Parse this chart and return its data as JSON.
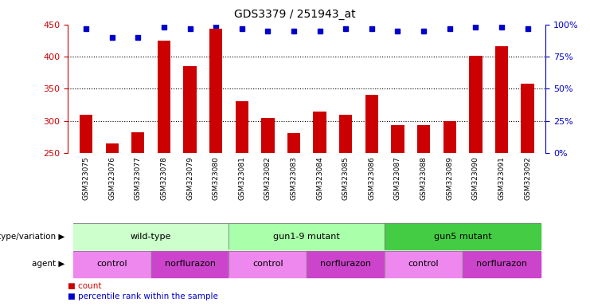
{
  "title": "GDS3379 / 251943_at",
  "samples": [
    "GSM323075",
    "GSM323076",
    "GSM323077",
    "GSM323078",
    "GSM323079",
    "GSM323080",
    "GSM323081",
    "GSM323082",
    "GSM323083",
    "GSM323084",
    "GSM323085",
    "GSM323086",
    "GSM323087",
    "GSM323088",
    "GSM323089",
    "GSM323090",
    "GSM323091",
    "GSM323092"
  ],
  "counts": [
    310,
    265,
    282,
    425,
    385,
    443,
    330,
    305,
    281,
    315,
    309,
    340,
    293,
    293,
    300,
    401,
    416,
    358
  ],
  "percentile_ranks": [
    97,
    90,
    90,
    98,
    97,
    99,
    97,
    95,
    95,
    95,
    97,
    97,
    95,
    95,
    97,
    98,
    98,
    97
  ],
  "bar_color": "#cc0000",
  "dot_color": "#0000cc",
  "ylim_left": [
    250,
    450
  ],
  "ylim_right": [
    0,
    100
  ],
  "yticks_left": [
    250,
    300,
    350,
    400,
    450
  ],
  "yticks_right": [
    0,
    25,
    50,
    75,
    100
  ],
  "grid_values": [
    300,
    350,
    400
  ],
  "genotype_groups": [
    {
      "label": "wild-type",
      "start": 0,
      "end": 5,
      "color": "#ccffcc"
    },
    {
      "label": "gun1-9 mutant",
      "start": 6,
      "end": 11,
      "color": "#aaffaa"
    },
    {
      "label": "gun5 mutant",
      "start": 12,
      "end": 17,
      "color": "#44cc44"
    }
  ],
  "agent_groups": [
    {
      "label": "control",
      "start": 0,
      "end": 2,
      "color": "#ee88ee"
    },
    {
      "label": "norflurazon",
      "start": 3,
      "end": 5,
      "color": "#cc44cc"
    },
    {
      "label": "control",
      "start": 6,
      "end": 8,
      "color": "#ee88ee"
    },
    {
      "label": "norflurazon",
      "start": 9,
      "end": 11,
      "color": "#cc44cc"
    },
    {
      "label": "control",
      "start": 12,
      "end": 14,
      "color": "#ee88ee"
    },
    {
      "label": "norflurazon",
      "start": 15,
      "end": 17,
      "color": "#cc44cc"
    }
  ],
  "bg_color": "#ffffff",
  "tick_bg_color": "#cccccc",
  "title_fontsize": 10,
  "bar_width": 0.5,
  "markersize": 5
}
